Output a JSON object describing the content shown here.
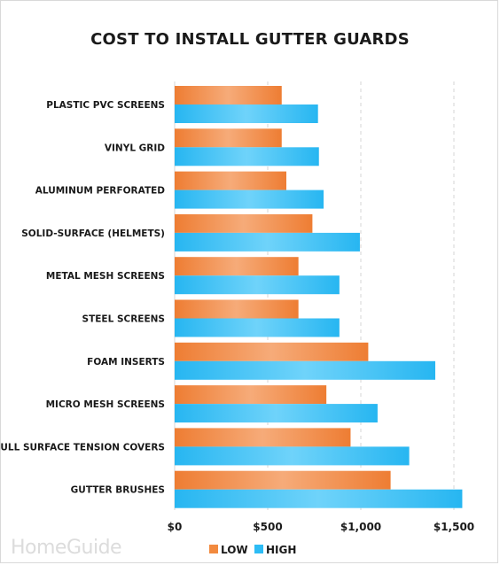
{
  "colors": {
    "low": "#f28a3f",
    "high": "#2dbcf5",
    "grid": "#d6d6d6",
    "text": "#1a1a1a"
  },
  "watermark": "HomeGuide",
  "chart_data": {
    "type": "bar",
    "orientation": "horizontal",
    "title": "COST TO INSTALL GUTTER GUARDS",
    "categories": [
      "PLASTIC PVC SCREENS",
      "VINYL GRID",
      "ALUMINUM PERFORATED",
      "SOLID-SURFACE (HELMETS)",
      "METAL MESH SCREENS",
      "STEEL SCREENS",
      "FOAM INSERTS",
      "MICRO MESH SCREENS",
      "FULL SURFACE TENSION COVERS",
      "GUTTER BRUSHES"
    ],
    "series": [
      {
        "name": "LOW",
        "values": [
          575,
          575,
          600,
          740,
          665,
          665,
          1040,
          815,
          945,
          1160
        ]
      },
      {
        "name": "HIGH",
        "values": [
          770,
          775,
          800,
          995,
          885,
          885,
          1400,
          1090,
          1260,
          1545
        ]
      }
    ],
    "xlim": [
      0,
      1500
    ],
    "xticks": [
      0,
      500,
      1000,
      1500
    ],
    "xtick_labels": [
      "$0",
      "$500",
      "$1,000",
      "$1,500"
    ],
    "grid": "vertical dashed",
    "legend_position": "bottom-center"
  }
}
